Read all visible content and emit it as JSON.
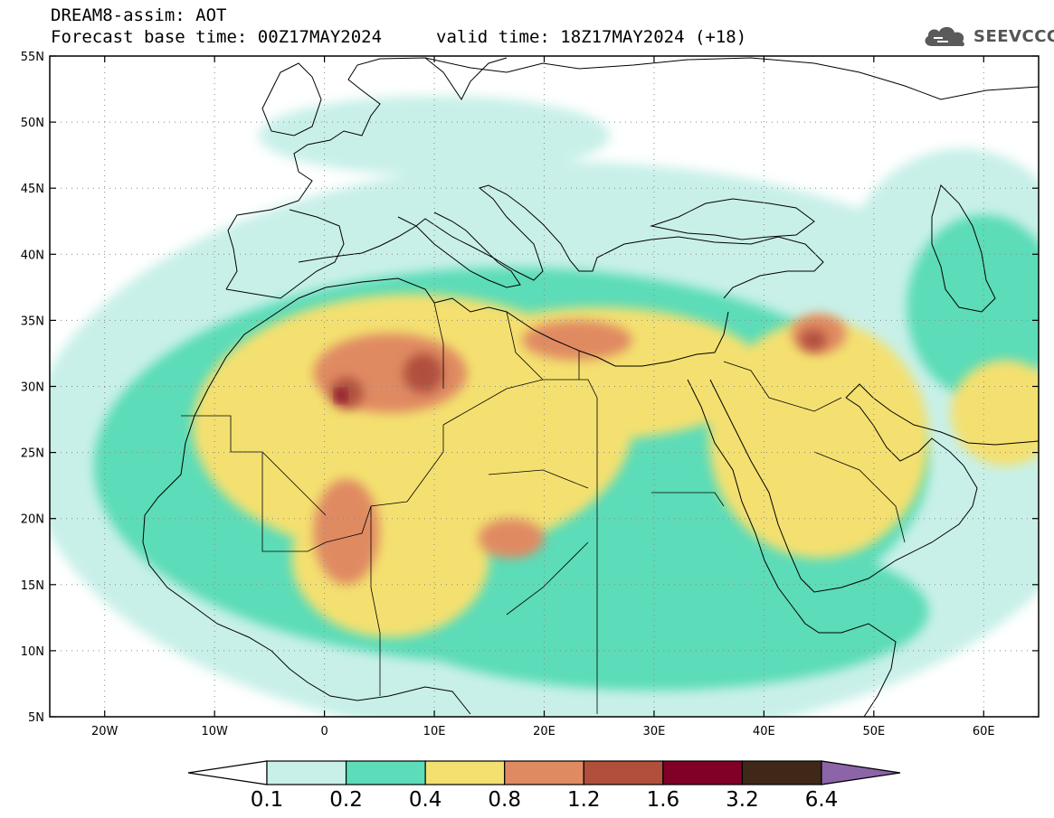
{
  "header": {
    "title": "DREAM8-assim: AOT",
    "base_time_line": "Forecast base time: 00Z17MAY2024",
    "valid_time_line": "valid time: 18Z17MAY2024 (+18)",
    "logo_text": "SEEVCCC",
    "logo_icon": "cloud-icon"
  },
  "map": {
    "projection": "lat-lon",
    "lon_range": [
      -25,
      65
    ],
    "lat_range": [
      5,
      55
    ],
    "lat_ticks": [
      {
        "value": 55,
        "label": "55N"
      },
      {
        "value": 50,
        "label": "50N"
      },
      {
        "value": 45,
        "label": "45N"
      },
      {
        "value": 40,
        "label": "40N"
      },
      {
        "value": 35,
        "label": "35N"
      },
      {
        "value": 30,
        "label": "30N"
      },
      {
        "value": 25,
        "label": "25N"
      },
      {
        "value": 20,
        "label": "20N"
      },
      {
        "value": 15,
        "label": "15N"
      },
      {
        "value": 10,
        "label": "10N"
      },
      {
        "value": 5,
        "label": "5N"
      }
    ],
    "lon_ticks": [
      {
        "value": -20,
        "label": "20W"
      },
      {
        "value": -10,
        "label": "10W"
      },
      {
        "value": 0,
        "label": "0"
      },
      {
        "value": 10,
        "label": "10E"
      },
      {
        "value": 20,
        "label": "20E"
      },
      {
        "value": 30,
        "label": "30E"
      },
      {
        "value": 40,
        "label": "40E"
      },
      {
        "value": 50,
        "label": "50E"
      },
      {
        "value": 60,
        "label": "60E"
      }
    ],
    "grid": "dotted",
    "ocean_color": "#ffffff",
    "coastline_color": "#000000"
  },
  "colorbar": {
    "bounds": [
      "0.1",
      "0.2",
      "0.4",
      "0.8",
      "1.2",
      "1.6",
      "3.2",
      "6.4"
    ],
    "colors": [
      "#c8f0e8",
      "#5cdcb8",
      "#f4e070",
      "#e08a62",
      "#b0503c",
      "#800028",
      "#402818"
    ],
    "under_color": "#ffffff",
    "over_color": "#8c64a8"
  },
  "aot_field": {
    "levels": [
      {
        "level": "0.1",
        "color": "#c8f0e8",
        "regions": [
          {
            "lon": 22,
            "lat": 25,
            "rx": 49,
            "ry": 22
          },
          {
            "lon": 10,
            "lat": 49,
            "rx": 16,
            "ry": 3
          },
          {
            "lon": 58,
            "lat": 38,
            "rx": 11,
            "ry": 10
          }
        ]
      },
      {
        "level": "0.2",
        "color": "#5cdcb8",
        "regions": [
          {
            "lon": 17,
            "lat": 24,
            "rx": 38,
            "ry": 15
          },
          {
            "lon": 60,
            "lat": 36,
            "rx": 7,
            "ry": 7
          },
          {
            "lon": 30,
            "lat": 13,
            "rx": 25,
            "ry": 6
          }
        ]
      },
      {
        "level": "0.4",
        "color": "#f4e070",
        "regions": [
          {
            "lon": 8,
            "lat": 27,
            "rx": 20,
            "ry": 10
          },
          {
            "lon": 25,
            "lat": 31,
            "rx": 15,
            "ry": 5
          },
          {
            "lon": 6,
            "lat": 17,
            "rx": 9,
            "ry": 6
          },
          {
            "lon": 45,
            "lat": 26,
            "rx": 10,
            "ry": 9
          },
          {
            "lon": 62,
            "lat": 28,
            "rx": 5,
            "ry": 4
          }
        ]
      },
      {
        "level": "0.8",
        "color": "#e08a62",
        "regions": [
          {
            "lon": 6,
            "lat": 31,
            "rx": 7,
            "ry": 3
          },
          {
            "lon": 2,
            "lat": 19,
            "rx": 3,
            "ry": 4
          },
          {
            "lon": 17,
            "lat": 18.5,
            "rx": 3,
            "ry": 1.5
          },
          {
            "lon": 23,
            "lat": 33.5,
            "rx": 5,
            "ry": 1.5
          },
          {
            "lon": 45,
            "lat": 34,
            "rx": 2.5,
            "ry": 1.5
          }
        ]
      },
      {
        "level": "1.2",
        "color": "#b0503c",
        "regions": [
          {
            "lon": 2,
            "lat": 29.5,
            "rx": 1.5,
            "ry": 1.2
          },
          {
            "lon": 9,
            "lat": 31,
            "rx": 1.8,
            "ry": 1.5
          },
          {
            "lon": 44.5,
            "lat": 33.5,
            "rx": 1.2,
            "ry": 0.8
          }
        ]
      },
      {
        "level": "1.6",
        "color": "#800028",
        "regions": [
          {
            "lon": 1.5,
            "lat": 29.3,
            "rx": 0.5,
            "ry": 0.5
          }
        ]
      }
    ]
  }
}
